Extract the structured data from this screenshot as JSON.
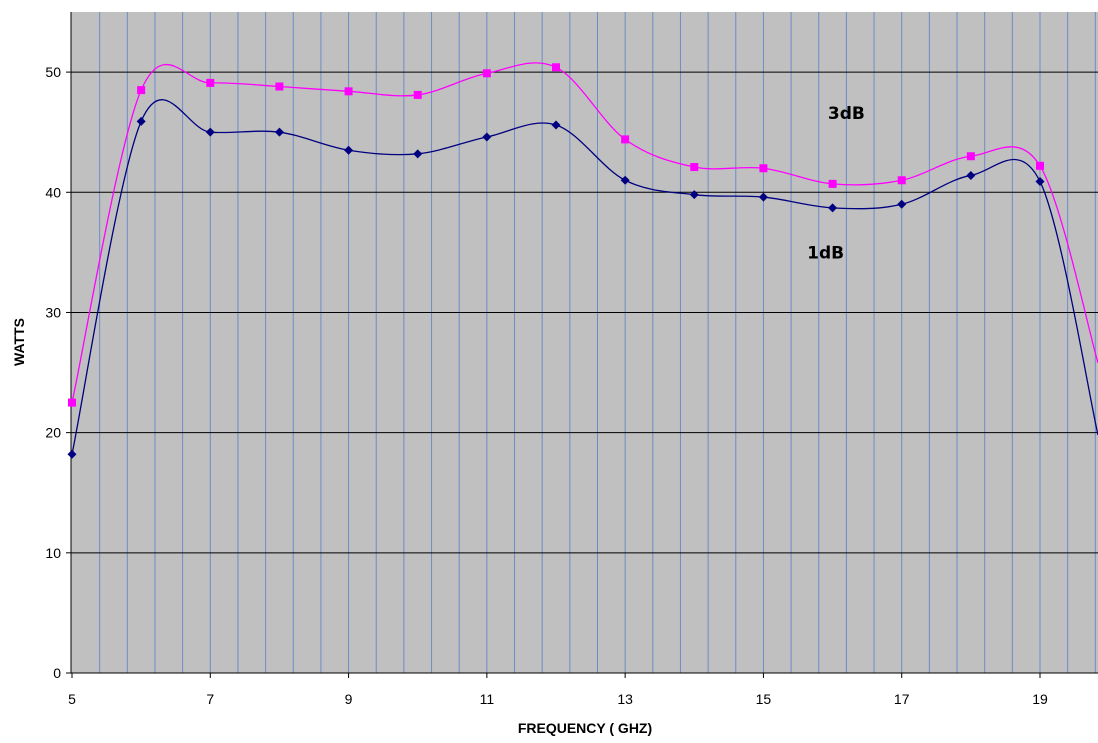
{
  "chart_data": {
    "type": "line",
    "xlabel": "FREQUENCY ( GHZ)",
    "ylabel": "WATTS",
    "xlim": [
      5,
      19.8
    ],
    "ylim": [
      0,
      55
    ],
    "x_ticks": [
      "5",
      "7",
      "9",
      "11",
      "13",
      "15",
      "17",
      "19"
    ],
    "y_ticks": [
      "0",
      "10",
      "20",
      "30",
      "40",
      "50"
    ],
    "minor_x_step": 0.4,
    "grid": true,
    "plot_background": "#c0c0c0",
    "major_grid_color": "#000000",
    "minor_grid_color": "#6e8cc8",
    "annotations": [
      {
        "text": "3dB",
        "x": 16.2,
        "y": 46.1
      },
      {
        "text": "1dB",
        "x": 15.9,
        "y": 34.5
      }
    ],
    "series": [
      {
        "name": "3dB",
        "color": "#ff00ff",
        "marker": "square",
        "x": [
          5,
          6,
          7,
          8,
          9,
          10,
          11,
          12,
          13,
          14,
          15,
          16,
          17,
          18,
          19
        ],
        "y": [
          22.5,
          48.5,
          49.1,
          48.8,
          48.4,
          48.1,
          49.9,
          50.4,
          44.4,
          42.1,
          42.0,
          40.7,
          41.0,
          43.0,
          42.2
        ],
        "y_end": 25.8
      },
      {
        "name": "1dB",
        "color": "#000080",
        "marker": "diamond",
        "x": [
          5,
          6,
          7,
          8,
          9,
          10,
          11,
          12,
          13,
          14,
          15,
          16,
          17,
          18,
          19
        ],
        "y": [
          18.2,
          45.9,
          45.0,
          45.0,
          43.5,
          43.2,
          44.6,
          45.6,
          41.0,
          39.8,
          39.6,
          38.7,
          39.0,
          41.4,
          40.9
        ],
        "y_end": 19.8
      }
    ]
  }
}
